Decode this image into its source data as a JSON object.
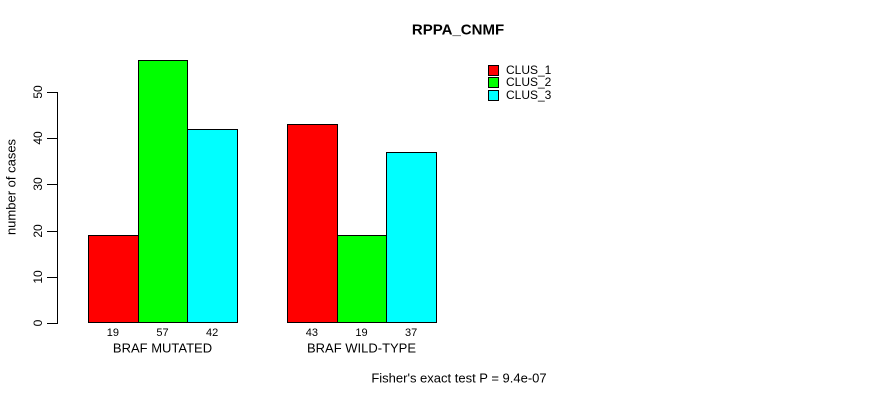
{
  "chart_data": {
    "type": "bar",
    "title": "RPPA_CNMF",
    "xlabel": "",
    "ylabel": "number of cases",
    "categories": [
      "BRAF MUTATED",
      "BRAF WILD-TYPE"
    ],
    "series": [
      {
        "name": "CLUS_1",
        "color": "#ff0000",
        "values": [
          19,
          43
        ]
      },
      {
        "name": "CLUS_2",
        "color": "#00ff00",
        "values": [
          57,
          19
        ]
      },
      {
        "name": "CLUS_3",
        "color": "#00ffff",
        "values": [
          42,
          37
        ]
      }
    ],
    "yticks": [
      0,
      10,
      20,
      30,
      40,
      50
    ],
    "ylim": [
      0,
      57
    ],
    "grid": false,
    "bar_value_labels_shown": true,
    "bar_border_color": "#000000",
    "legend_position": "top-right",
    "annotation": "Fisher's exact test P = 9.4e-07"
  }
}
